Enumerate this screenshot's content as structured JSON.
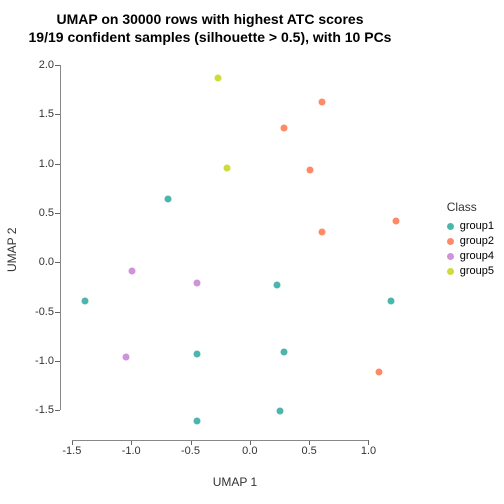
{
  "chart": {
    "type": "scatter",
    "title_line1": "UMAP on 30000 rows with highest ATC scores",
    "title_line2": "19/19 confident samples (silhouette > 0.5), with 10 PCs",
    "title_fontsize": 14,
    "xlabel": "UMAP 1",
    "ylabel": "UMAP 2",
    "label_fontsize": 12,
    "tick_fontsize": 11,
    "xlim": [
      -1.6,
      1.35
    ],
    "ylim": [
      -1.8,
      2.05
    ],
    "xticks": [
      -1.5,
      -1.0,
      -0.5,
      0.0,
      0.5,
      1.0
    ],
    "yticks": [
      -1.5,
      -1.0,
      -0.5,
      0.0,
      0.5,
      1.0,
      1.5,
      2.0
    ],
    "background_color": "#ffffff",
    "plot_background": "#ffffff",
    "grid_color": "#ffffff",
    "border_color": "#888888",
    "point_size": 7,
    "legend": {
      "title": "Class",
      "position": "right",
      "items": [
        {
          "label": "group1",
          "color": "#4db6ac"
        },
        {
          "label": "group2",
          "color": "#ff8a65"
        },
        {
          "label": "group4",
          "color": "#ce93d8"
        },
        {
          "label": "group5",
          "color": "#cddc39"
        }
      ]
    },
    "series": [
      {
        "group": "group1",
        "color": "#4db6ac",
        "points": [
          {
            "x": -1.4,
            "y": -0.38
          },
          {
            "x": -0.7,
            "y": 0.65
          },
          {
            "x": -0.45,
            "y": -0.92
          },
          {
            "x": -0.45,
            "y": -1.6
          },
          {
            "x": 0.22,
            "y": -0.22
          },
          {
            "x": 0.25,
            "y": -1.5
          },
          {
            "x": 0.28,
            "y": -0.9
          },
          {
            "x": 1.18,
            "y": -0.38
          }
        ]
      },
      {
        "group": "group2",
        "color": "#ff8a65",
        "points": [
          {
            "x": 0.28,
            "y": 1.37
          },
          {
            "x": 0.5,
            "y": 0.95
          },
          {
            "x": 0.6,
            "y": 1.63
          },
          {
            "x": 0.6,
            "y": 0.32
          },
          {
            "x": 1.08,
            "y": -1.1
          },
          {
            "x": 1.22,
            "y": 0.43
          }
        ]
      },
      {
        "group": "group4",
        "color": "#ce93d8",
        "points": [
          {
            "x": -1.05,
            "y": -0.95
          },
          {
            "x": -1.0,
            "y": -0.08
          },
          {
            "x": -0.45,
            "y": -0.2
          }
        ]
      },
      {
        "group": "group5",
        "color": "#cddc39",
        "points": [
          {
            "x": -0.28,
            "y": 1.88
          },
          {
            "x": -0.2,
            "y": 0.97
          }
        ]
      }
    ]
  }
}
